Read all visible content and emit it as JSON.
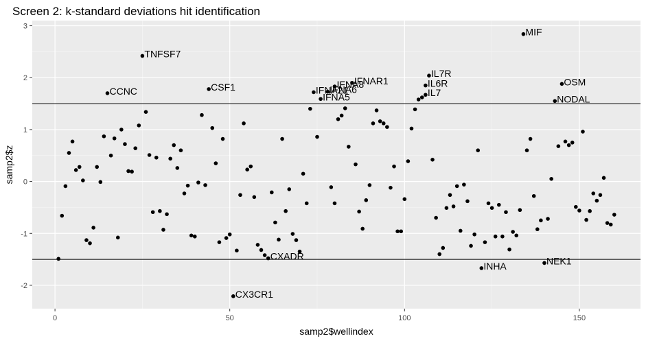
{
  "chart_data": {
    "type": "scatter",
    "title": "Screen 2: k-standard deviations hit identification",
    "xlabel": "samp2$wellindex",
    "ylabel": "samp2$z",
    "xlim": [
      -6.5,
      167.5
    ],
    "ylim": [
      -2.45,
      3.1
    ],
    "x_ticks": [
      0,
      50,
      100,
      150
    ],
    "y_ticks": [
      -2,
      -1,
      0,
      1,
      2,
      3
    ],
    "hlines": [
      1.5,
      -1.5
    ],
    "grid": true,
    "legend": "none",
    "colors": {
      "panel": "#EBEBEB",
      "grid_major": "#FFFFFF",
      "grid_minor": "#F5F5F5",
      "point": "#000000",
      "tick_text": "#4D4D4D",
      "hline": "#000000"
    },
    "labeled_points": [
      {
        "label": "MIF",
        "x": 134,
        "y": 2.84
      },
      {
        "label": "TNFSF7",
        "x": 25,
        "y": 2.42
      },
      {
        "label": "IL7R",
        "x": 107,
        "y": 2.04
      },
      {
        "label": "OSM",
        "x": 145,
        "y": 1.88
      },
      {
        "label": "IFNAR1",
        "x": 85,
        "y": 1.9
      },
      {
        "label": "IL6R",
        "x": 106,
        "y": 1.85
      },
      {
        "label": "IFNA8",
        "x": 80,
        "y": 1.83
      },
      {
        "label": "CSF1",
        "x": 44,
        "y": 1.78
      },
      {
        "label": "IFNA21",
        "x": 74,
        "y": 1.72
      },
      {
        "label": "IFNA6",
        "x": 78,
        "y": 1.73
      },
      {
        "label": "CCNC",
        "x": 15,
        "y": 1.7
      },
      {
        "label": "IL7",
        "x": 106,
        "y": 1.67
      },
      {
        "label": "IFNA5",
        "x": 76,
        "y": 1.59
      },
      {
        "label": "NODAL",
        "x": 143,
        "y": 1.55
      },
      {
        "label": "CXADR",
        "x": 61,
        "y": -1.48
      },
      {
        "label": "NEK1",
        "x": 140,
        "y": -1.57
      },
      {
        "label": "INHA",
        "x": 122,
        "y": -1.67
      },
      {
        "label": "CX3CR1",
        "x": 51,
        "y": -2.21
      }
    ],
    "x": [
      1,
      2,
      3,
      4,
      5,
      6,
      7,
      8,
      9,
      10,
      11,
      12,
      13,
      14,
      16,
      17,
      18,
      19,
      20,
      21,
      22,
      23,
      24,
      26,
      27,
      28,
      29,
      30,
      31,
      32,
      33,
      34,
      35,
      36,
      37,
      38,
      39,
      40,
      41,
      42,
      43,
      45,
      46,
      47,
      48,
      49,
      50,
      52,
      53,
      54,
      55,
      56,
      57,
      58,
      59,
      60,
      62,
      63,
      64,
      65,
      66,
      67,
      68,
      69,
      70,
      71,
      72,
      73,
      75,
      79,
      80,
      81,
      82,
      83,
      84,
      86,
      87,
      88,
      89,
      90,
      91,
      92,
      93,
      94,
      95,
      96,
      97,
      98,
      99,
      100,
      101,
      102,
      103,
      104,
      105,
      108,
      109,
      110,
      111,
      112,
      113,
      114,
      115,
      116,
      117,
      118,
      119,
      120,
      121,
      123,
      124,
      125,
      126,
      127,
      128,
      129,
      130,
      131,
      132,
      133,
      135,
      136,
      137,
      138,
      139,
      141,
      142,
      144,
      146,
      147,
      148,
      149,
      150,
      151,
      152,
      153,
      154,
      155,
      156,
      157,
      158,
      159,
      160
    ],
    "y": [
      -1.49,
      -0.66,
      -0.09,
      0.55,
      0.77,
      0.22,
      0.28,
      0.02,
      -1.13,
      -1.19,
      -0.89,
      0.28,
      -0.01,
      0.87,
      0.5,
      0.83,
      -1.08,
      1.0,
      0.72,
      0.2,
      0.19,
      0.64,
      1.08,
      1.34,
      0.51,
      -0.59,
      0.46,
      -0.57,
      -0.93,
      -0.63,
      0.44,
      0.7,
      0.26,
      0.6,
      -0.23,
      -0.08,
      -1.04,
      -1.06,
      -0.02,
      1.28,
      -0.07,
      1.03,
      0.35,
      -1.17,
      0.82,
      -1.09,
      -1.02,
      -1.33,
      -0.26,
      1.12,
      0.23,
      0.29,
      -0.3,
      -1.22,
      -1.32,
      -1.42,
      -0.21,
      -0.79,
      -1.12,
      0.82,
      -0.57,
      -0.15,
      -1.01,
      -1.13,
      -1.35,
      0.15,
      -0.42,
      1.4,
      0.86,
      -0.11,
      -0.42,
      1.2,
      1.27,
      1.41,
      0.67,
      0.33,
      -0.58,
      -0.91,
      -0.36,
      -0.07,
      1.12,
      1.37,
      1.16,
      1.12,
      1.05,
      -0.12,
      0.29,
      -0.96,
      -0.96,
      -0.34,
      0.39,
      1.02,
      1.39,
      1.58,
      1.62,
      0.42,
      -0.7,
      -1.4,
      -1.28,
      -0.51,
      -0.26,
      -0.48,
      -0.09,
      -0.95,
      -0.06,
      -0.38,
      -1.24,
      -1.02,
      0.6,
      -1.17,
      -0.42,
      -0.51,
      -1.06,
      -0.45,
      -1.06,
      -0.59,
      -1.31,
      -0.97,
      -1.04,
      -0.55,
      0.6,
      0.82,
      -0.28,
      -0.92,
      -0.75,
      -0.72,
      0.05,
      0.68,
      0.77,
      0.7,
      0.75,
      -0.49,
      -0.56,
      0.96,
      -0.74,
      -0.57,
      -0.23,
      -0.37,
      -0.26,
      0.07,
      -0.8,
      -0.83,
      -0.64
    ]
  }
}
